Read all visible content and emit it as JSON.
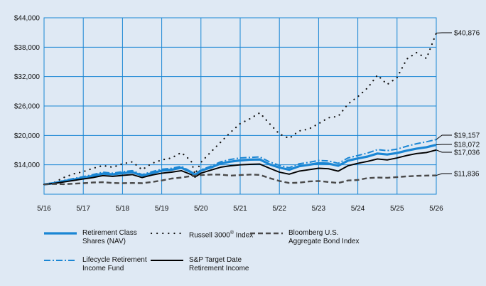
{
  "chart_data": {
    "type": "line",
    "x_tick_labels": [
      "5/16",
      "5/17",
      "5/18",
      "5/19",
      "5/20",
      "5/21",
      "5/22",
      "5/23",
      "5/24",
      "5/25",
      "5/26"
    ],
    "y_ticks": [
      14000,
      20000,
      26000,
      32000,
      38000,
      44000
    ],
    "y_tick_labels": [
      "$14,000",
      "$20,000",
      "$26,000",
      "$32,000",
      "$38,000",
      "$44,000"
    ],
    "ylim": [
      8000,
      44000
    ],
    "xlim": [
      2016.37,
      2026.37
    ],
    "grid": true,
    "legend_position": "bottom",
    "series": [
      {
        "name": "Russell 3000® Index",
        "style": "dotted",
        "color": "#111111",
        "end_label": "$40,876",
        "points": [
          [
            2016.37,
            10000
          ],
          [
            2016.62,
            10350
          ],
          [
            2016.87,
            11400
          ],
          [
            2017.12,
            12150
          ],
          [
            2017.37,
            12600
          ],
          [
            2017.62,
            13300
          ],
          [
            2017.87,
            13850
          ],
          [
            2018.12,
            13500
          ],
          [
            2018.37,
            14200
          ],
          [
            2018.62,
            14600
          ],
          [
            2018.87,
            13000
          ],
          [
            2019.12,
            14300
          ],
          [
            2019.37,
            15000
          ],
          [
            2019.62,
            15400
          ],
          [
            2019.87,
            16500
          ],
          [
            2020.12,
            14800
          ],
          [
            2020.22,
            12100
          ],
          [
            2020.37,
            14500
          ],
          [
            2020.62,
            16600
          ],
          [
            2020.87,
            18600
          ],
          [
            2021.12,
            20600
          ],
          [
            2021.37,
            22400
          ],
          [
            2021.62,
            23400
          ],
          [
            2021.87,
            24600
          ],
          [
            2022.12,
            22400
          ],
          [
            2022.37,
            20300
          ],
          [
            2022.62,
            19400
          ],
          [
            2022.87,
            20900
          ],
          [
            2023.12,
            21300
          ],
          [
            2023.37,
            22400
          ],
          [
            2023.62,
            23600
          ],
          [
            2023.87,
            23900
          ],
          [
            2024.12,
            26400
          ],
          [
            2024.37,
            27900
          ],
          [
            2024.62,
            29700
          ],
          [
            2024.87,
            32300
          ],
          [
            2025.12,
            30400
          ],
          [
            2025.37,
            31800
          ],
          [
            2025.62,
            35600
          ],
          [
            2025.87,
            36900
          ],
          [
            2026.12,
            35700
          ],
          [
            2026.37,
            40876
          ]
        ]
      },
      {
        "name": "Lifecycle Retirement Income Fund",
        "style": "dashdot",
        "color": "#1a86d4",
        "end_label": "$19,157",
        "points": [
          [
            2016.37,
            10000
          ],
          [
            2016.62,
            10300
          ],
          [
            2016.87,
            10800
          ],
          [
            2017.12,
            11200
          ],
          [
            2017.37,
            11600
          ],
          [
            2017.62,
            12000
          ],
          [
            2017.87,
            12500
          ],
          [
            2018.12,
            12300
          ],
          [
            2018.37,
            12600
          ],
          [
            2018.62,
            12800
          ],
          [
            2018.87,
            12000
          ],
          [
            2019.12,
            12600
          ],
          [
            2019.37,
            13100
          ],
          [
            2019.62,
            13300
          ],
          [
            2019.87,
            13700
          ],
          [
            2020.12,
            12600
          ],
          [
            2020.22,
            12000
          ],
          [
            2020.37,
            13000
          ],
          [
            2020.62,
            13700
          ],
          [
            2020.87,
            14600
          ],
          [
            2021.12,
            15100
          ],
          [
            2021.37,
            15400
          ],
          [
            2021.62,
            15500
          ],
          [
            2021.87,
            15600
          ],
          [
            2022.12,
            14600
          ],
          [
            2022.37,
            13900
          ],
          [
            2022.62,
            13400
          ],
          [
            2022.87,
            14200
          ],
          [
            2023.12,
            14500
          ],
          [
            2023.37,
            14900
          ],
          [
            2023.62,
            14800
          ],
          [
            2023.87,
            14300
          ],
          [
            2024.12,
            15400
          ],
          [
            2024.37,
            15900
          ],
          [
            2024.62,
            16400
          ],
          [
            2024.87,
            17100
          ],
          [
            2025.12,
            16900
          ],
          [
            2025.37,
            17200
          ],
          [
            2025.62,
            17800
          ],
          [
            2025.87,
            18300
          ],
          [
            2026.12,
            18700
          ],
          [
            2026.37,
            19157
          ]
        ]
      },
      {
        "name": "Retirement Class Shares (NAV)",
        "style": "solid-thick",
        "color": "#1a86d4",
        "end_label": "$18,072",
        "points": [
          [
            2016.37,
            10000
          ],
          [
            2016.62,
            10250
          ],
          [
            2016.87,
            10650
          ],
          [
            2017.12,
            11000
          ],
          [
            2017.37,
            11350
          ],
          [
            2017.62,
            11750
          ],
          [
            2017.87,
            12200
          ],
          [
            2018.12,
            12050
          ],
          [
            2018.37,
            12300
          ],
          [
            2018.62,
            12500
          ],
          [
            2018.87,
            11800
          ],
          [
            2019.12,
            12300
          ],
          [
            2019.37,
            12800
          ],
          [
            2019.62,
            13000
          ],
          [
            2019.87,
            13400
          ],
          [
            2020.12,
            12500
          ],
          [
            2020.22,
            11950
          ],
          [
            2020.37,
            12800
          ],
          [
            2020.62,
            13450
          ],
          [
            2020.87,
            14250
          ],
          [
            2021.12,
            14650
          ],
          [
            2021.37,
            14900
          ],
          [
            2021.62,
            15050
          ],
          [
            2021.87,
            15100
          ],
          [
            2022.12,
            14100
          ],
          [
            2022.37,
            13450
          ],
          [
            2022.62,
            13000
          ],
          [
            2022.87,
            13700
          ],
          [
            2023.12,
            14000
          ],
          [
            2023.37,
            14350
          ],
          [
            2023.62,
            14250
          ],
          [
            2023.87,
            13800
          ],
          [
            2024.12,
            14850
          ],
          [
            2024.37,
            15300
          ],
          [
            2024.62,
            15700
          ],
          [
            2024.87,
            16300
          ],
          [
            2025.12,
            16100
          ],
          [
            2025.37,
            16400
          ],
          [
            2025.62,
            16900
          ],
          [
            2025.87,
            17300
          ],
          [
            2026.12,
            17600
          ],
          [
            2026.37,
            18072
          ]
        ]
      },
      {
        "name": "S&P Target Date Retirement Income",
        "style": "solid",
        "color": "#000000",
        "end_label": "$17,036",
        "points": [
          [
            2016.37,
            10000
          ],
          [
            2016.62,
            10200
          ],
          [
            2016.87,
            10500
          ],
          [
            2017.12,
            10800
          ],
          [
            2017.37,
            11100
          ],
          [
            2017.62,
            11400
          ],
          [
            2017.87,
            11800
          ],
          [
            2018.12,
            11650
          ],
          [
            2018.37,
            11850
          ],
          [
            2018.62,
            12000
          ],
          [
            2018.87,
            11400
          ],
          [
            2019.12,
            11900
          ],
          [
            2019.37,
            12300
          ],
          [
            2019.62,
            12500
          ],
          [
            2019.87,
            12800
          ],
          [
            2020.12,
            12000
          ],
          [
            2020.22,
            11500
          ],
          [
            2020.37,
            12300
          ],
          [
            2020.62,
            12900
          ],
          [
            2020.87,
            13500
          ],
          [
            2021.12,
            13800
          ],
          [
            2021.37,
            14000
          ],
          [
            2021.62,
            14100
          ],
          [
            2021.87,
            14150
          ],
          [
            2022.12,
            13300
          ],
          [
            2022.37,
            12500
          ],
          [
            2022.62,
            12100
          ],
          [
            2022.87,
            12700
          ],
          [
            2023.12,
            13000
          ],
          [
            2023.37,
            13300
          ],
          [
            2023.62,
            13200
          ],
          [
            2023.87,
            12700
          ],
          [
            2024.12,
            13800
          ],
          [
            2024.37,
            14300
          ],
          [
            2024.62,
            14700
          ],
          [
            2024.87,
            15200
          ],
          [
            2025.12,
            15000
          ],
          [
            2025.37,
            15400
          ],
          [
            2025.62,
            15900
          ],
          [
            2025.87,
            16300
          ],
          [
            2026.12,
            16500
          ],
          [
            2026.37,
            17036
          ]
        ]
      },
      {
        "name": "Bloomberg U.S. Aggregate Bond Index",
        "style": "dashed",
        "color": "#4a4a4a",
        "end_label": "$11,836",
        "points": [
          [
            2016.37,
            10000
          ],
          [
            2016.62,
            10100
          ],
          [
            2016.87,
            10050
          ],
          [
            2017.12,
            10150
          ],
          [
            2017.37,
            10250
          ],
          [
            2017.62,
            10400
          ],
          [
            2017.87,
            10450
          ],
          [
            2018.12,
            10300
          ],
          [
            2018.37,
            10250
          ],
          [
            2018.62,
            10300
          ],
          [
            2018.87,
            10250
          ],
          [
            2019.12,
            10500
          ],
          [
            2019.37,
            10800
          ],
          [
            2019.62,
            11200
          ],
          [
            2019.87,
            11400
          ],
          [
            2020.12,
            11700
          ],
          [
            2020.37,
            11900
          ],
          [
            2020.62,
            12000
          ],
          [
            2020.87,
            12000
          ],
          [
            2021.12,
            11800
          ],
          [
            2021.37,
            11900
          ],
          [
            2021.62,
            12000
          ],
          [
            2021.87,
            11950
          ],
          [
            2022.12,
            11300
          ],
          [
            2022.37,
            10700
          ],
          [
            2022.62,
            10300
          ],
          [
            2022.87,
            10350
          ],
          [
            2023.12,
            10600
          ],
          [
            2023.37,
            10700
          ],
          [
            2023.62,
            10500
          ],
          [
            2023.87,
            10300
          ],
          [
            2024.12,
            10800
          ],
          [
            2024.37,
            10900
          ],
          [
            2024.62,
            11300
          ],
          [
            2024.87,
            11400
          ],
          [
            2025.12,
            11350
          ],
          [
            2025.37,
            11500
          ],
          [
            2025.62,
            11650
          ],
          [
            2025.87,
            11750
          ],
          [
            2026.12,
            11800
          ],
          [
            2026.37,
            11836
          ]
        ]
      }
    ],
    "legend": [
      {
        "series": "Retirement Class Shares (NAV)",
        "style": "solid-thick",
        "color": "#1a86d4",
        "line1": "Retirement Class",
        "line2": "Shares (NAV)"
      },
      {
        "series": "Russell 3000® Index",
        "style": "dotted",
        "color": "#111111",
        "line1": "Russell 3000® Index",
        "line2": ""
      },
      {
        "series": "Bloomberg U.S. Aggregate Bond Index",
        "style": "dashed",
        "color": "#4a4a4a",
        "line1": "Bloomberg U.S.",
        "line2": "Aggregate Bond Index"
      },
      {
        "series": "Lifecycle Retirement Income Fund",
        "style": "dashdot",
        "color": "#1a86d4",
        "line1": "Lifecycle Retirement",
        "line2": "Income Fund"
      },
      {
        "series": "S&P Target Date Retirement Income",
        "style": "solid",
        "color": "#000000",
        "line1": "S&P Target Date",
        "line2": "Retirement Income"
      }
    ]
  }
}
